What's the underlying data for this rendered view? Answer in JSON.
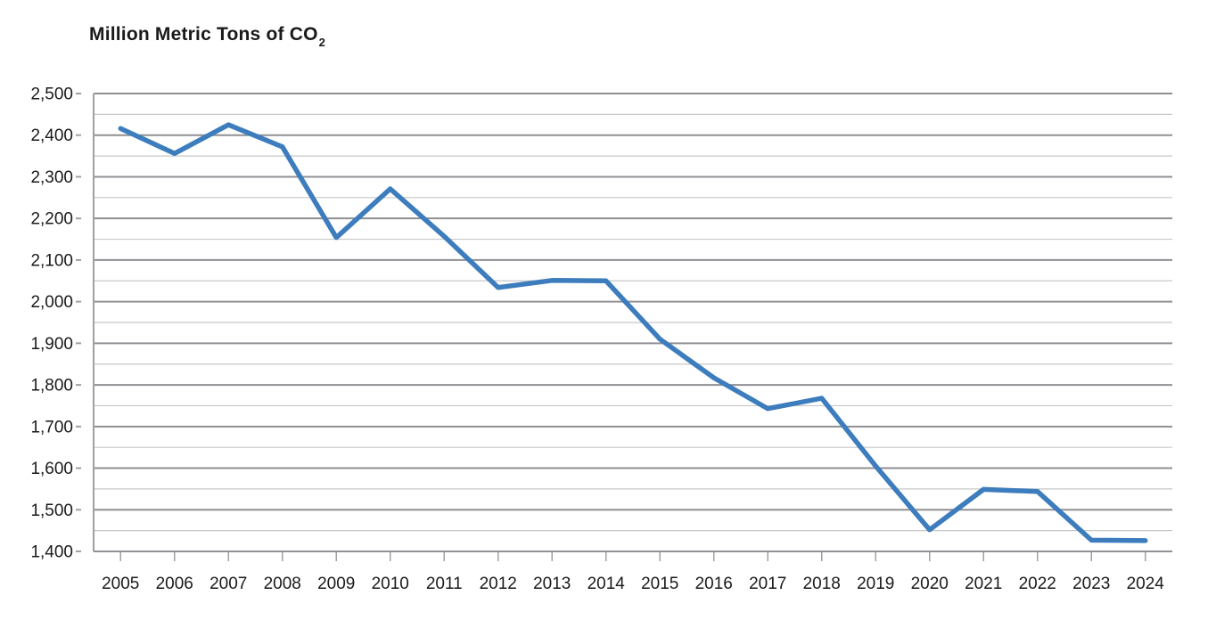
{
  "title": {
    "main": "Million Metric Tons of CO",
    "subscript": "2"
  },
  "chart_data": {
    "type": "line",
    "title": "Million Metric Tons of CO2",
    "x": [
      2005,
      2006,
      2007,
      2008,
      2009,
      2010,
      2011,
      2012,
      2013,
      2014,
      2015,
      2016,
      2017,
      2018,
      2019,
      2020,
      2021,
      2022,
      2023,
      2024
    ],
    "series": [
      {
        "name": "Million Metric Tons of CO2",
        "values": [
          2416,
          2356,
          2425,
          2372,
          2154,
          2271,
          2157,
          2034,
          2051,
          2050,
          1910,
          1817,
          1743,
          1768,
          1605,
          1452,
          1549,
          1544,
          1427,
          1426
        ]
      }
    ],
    "xlabel": "",
    "ylabel": "",
    "ylim": [
      1400,
      2500
    ],
    "ytick_major_step": 100,
    "ytick_minor_step": 50,
    "ytick_labels": [
      "1,400",
      "1,500",
      "1,600",
      "1,700",
      "1,800",
      "1,900",
      "2,000",
      "2,100",
      "2,200",
      "2,300",
      "2,400",
      "2,500"
    ],
    "xtick_labels": [
      "2005",
      "2006",
      "2007",
      "2008",
      "2009",
      "2010",
      "2011",
      "2012",
      "2013",
      "2014",
      "2015",
      "2016",
      "2017",
      "2018",
      "2019",
      "2020",
      "2021",
      "2022",
      "2023",
      "2024"
    ],
    "grid": "horizontal major and minor",
    "legend": "none",
    "colors": {
      "line": "#3d7dbd",
      "grid_major": "#909094",
      "grid_minor": "#c7c7c7",
      "axis": "#a0a0a0",
      "tick": "#a0a0a0",
      "text": "#1a1a1a"
    }
  }
}
